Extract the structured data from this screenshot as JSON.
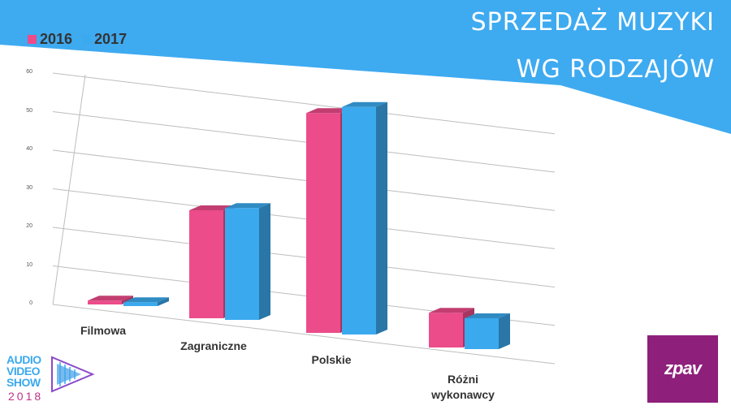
{
  "header": {
    "title_line1": "SPRZEDAŻ MUZYKI",
    "title_line2": "WG RODZAJÓW",
    "bg_color": "#3eaaf0"
  },
  "chart_data": {
    "type": "bar",
    "categories": [
      "Filmowa",
      "Zagraniczne",
      "Polskie",
      "Różni wykonawcy"
    ],
    "series": [
      {
        "name": "2016",
        "color": "#ec4c8a",
        "values": [
          1,
          28,
          57,
          9
        ]
      },
      {
        "name": "2017",
        "color": "#3aa9ee",
        "values": [
          1,
          29,
          59,
          8
        ]
      }
    ],
    "ylim": [
      0,
      60
    ],
    "yticks": [
      "0",
      "10",
      "20",
      "30",
      "40",
      "50",
      "60"
    ],
    "grid": true,
    "legend_position": "top-left"
  },
  "category_labels": {
    "c0": "Filmowa",
    "c1": "Zagraniczne",
    "c2": "Polskie",
    "c3_line1": "Różni",
    "c3_line2": "wykonawcy"
  },
  "logos": {
    "avs_line1": "AUDIO",
    "avs_line2": "VIDEO",
    "avs_line3": "SHOW",
    "avs_year": "2018",
    "zpav": "zpav"
  }
}
